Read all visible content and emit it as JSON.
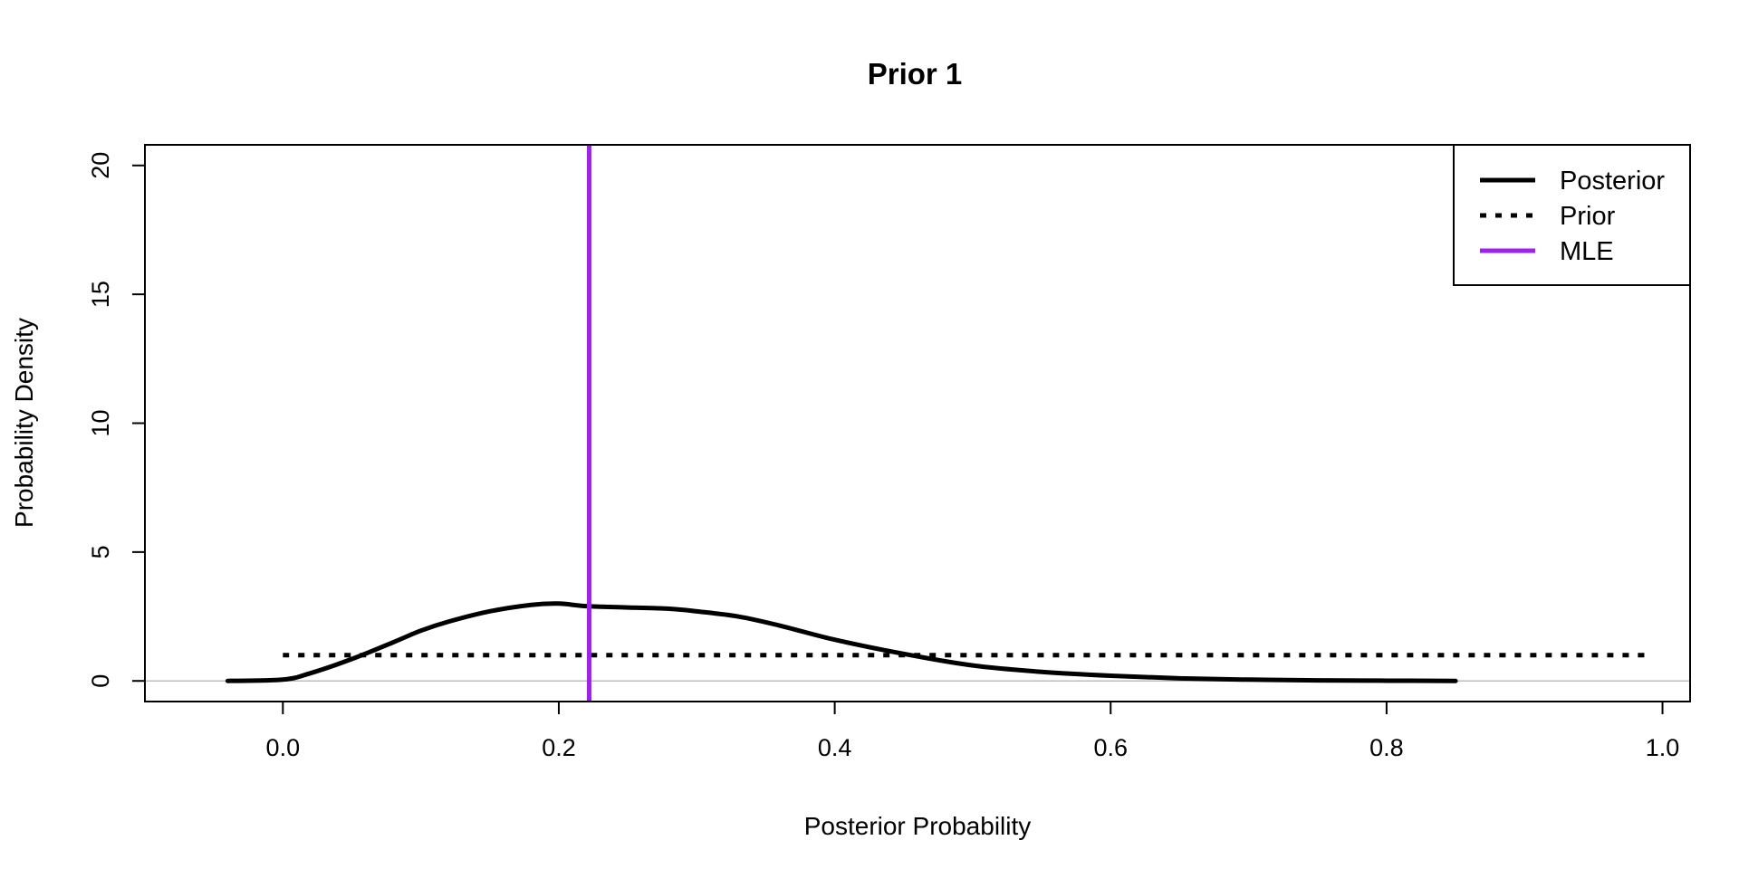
{
  "chart_data": {
    "type": "line",
    "title": "Prior 1",
    "xlabel": "Posterior Probability",
    "ylabel": "Probability Density",
    "xlim": [
      -0.1,
      1.02
    ],
    "ylim": [
      -0.8,
      20.8
    ],
    "x_ticks": [
      0.0,
      0.2,
      0.4,
      0.6,
      0.8,
      1.0
    ],
    "x_tick_labels": [
      "0.0",
      "0.2",
      "0.4",
      "0.6",
      "0.8",
      "1.0"
    ],
    "y_ticks": [
      0,
      5,
      10,
      15,
      20
    ],
    "y_tick_labels": [
      "0",
      "5",
      "10",
      "15",
      "20"
    ],
    "grid": false,
    "legend_position": "top-right",
    "series": [
      {
        "name": "Posterior",
        "style": "solid",
        "color": "#000000",
        "x": [
          -0.04,
          0.0,
          0.02,
          0.05,
          0.08,
          0.1,
          0.12,
          0.15,
          0.18,
          0.2,
          0.22,
          0.25,
          0.28,
          0.3,
          0.33,
          0.36,
          0.4,
          0.45,
          0.5,
          0.55,
          0.6,
          0.65,
          0.7,
          0.75,
          0.8,
          0.85
        ],
        "y": [
          0.0,
          0.05,
          0.3,
          0.85,
          1.5,
          1.95,
          2.3,
          2.7,
          2.95,
          3.0,
          2.9,
          2.85,
          2.8,
          2.7,
          2.5,
          2.15,
          1.6,
          1.05,
          0.6,
          0.35,
          0.2,
          0.1,
          0.05,
          0.02,
          0.01,
          0.0
        ]
      },
      {
        "name": "Prior",
        "style": "dotted",
        "color": "#000000",
        "x": [
          0.0,
          0.99
        ],
        "y": [
          1.0,
          1.0
        ]
      }
    ],
    "mle": {
      "name": "MLE",
      "x": 0.222,
      "color": "#a020f0"
    },
    "reference_line": {
      "y": 0,
      "color": "#bebebe"
    }
  }
}
